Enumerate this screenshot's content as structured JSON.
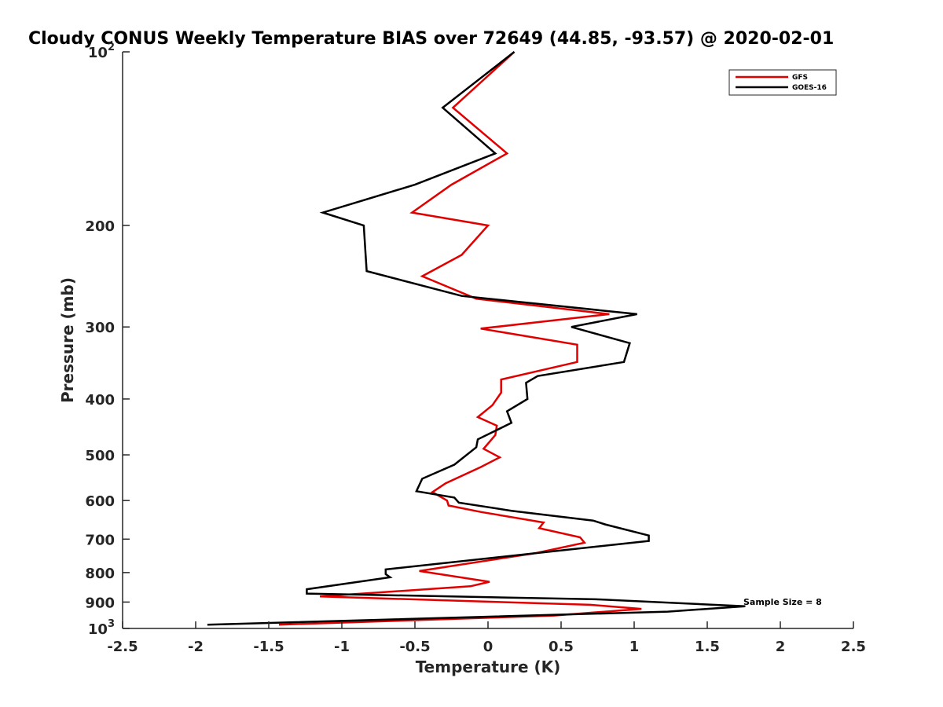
{
  "chart_data": {
    "type": "line",
    "title": "Cloudy CONUS Weekly Temperature BIAS over 72649 (44.85, -93.57) @ 2020-02-01",
    "xlabel": "Temperature (K)",
    "ylabel": "Pressure (mb)",
    "xlim": [
      -2.5,
      2.5
    ],
    "ylim": [
      1000,
      100
    ],
    "y_scale": "log",
    "y_reversed": true,
    "grid": false,
    "legend_position": "top-right",
    "x_ticks": [
      "-2.5",
      "-2",
      "-1.5",
      "-1",
      "-0.5",
      "0",
      "0.5",
      "1",
      "1.5",
      "2",
      "2.5"
    ],
    "x_tick_values": [
      -2.5,
      -2,
      -1.5,
      -1,
      -0.5,
      0,
      0.5,
      1,
      1.5,
      2,
      2.5
    ],
    "y_ticks": [
      {
        "value": 100,
        "base": "10",
        "exp": "2"
      },
      {
        "value": 200,
        "label": "200"
      },
      {
        "value": 300,
        "label": "300"
      },
      {
        "value": 400,
        "label": "400"
      },
      {
        "value": 500,
        "label": "500"
      },
      {
        "value": 600,
        "label": "600"
      },
      {
        "value": 700,
        "label": "700"
      },
      {
        "value": 800,
        "label": "800"
      },
      {
        "value": 900,
        "label": "900"
      },
      {
        "value": 1000,
        "base": "10",
        "exp": "3"
      }
    ],
    "annotation": "Sample Size = 8",
    "series": [
      {
        "name": "GFS",
        "color": "#e00000",
        "points": [
          [
            0.18,
            100
          ],
          [
            -0.24,
            125
          ],
          [
            0.13,
            150
          ],
          [
            -0.25,
            170
          ],
          [
            -0.52,
            190
          ],
          [
            0.0,
            200
          ],
          [
            -0.18,
            225
          ],
          [
            -0.45,
            245
          ],
          [
            -0.08,
            268
          ],
          [
            0.83,
            285
          ],
          [
            -0.05,
            302
          ],
          [
            0.61,
            322
          ],
          [
            0.61,
            345
          ],
          [
            0.09,
            370
          ],
          [
            0.09,
            390
          ],
          [
            0.03,
            410
          ],
          [
            -0.07,
            430
          ],
          [
            0.06,
            445
          ],
          [
            0.05,
            462
          ],
          [
            -0.03,
            488
          ],
          [
            0.08,
            505
          ],
          [
            -0.05,
            525
          ],
          [
            -0.29,
            560
          ],
          [
            -0.38,
            580
          ],
          [
            -0.28,
            600
          ],
          [
            -0.27,
            612
          ],
          [
            -0.05,
            628
          ],
          [
            0.38,
            655
          ],
          [
            0.35,
            670
          ],
          [
            0.63,
            695
          ],
          [
            0.66,
            710
          ],
          [
            0.33,
            740
          ],
          [
            -0.47,
            795
          ],
          [
            0.01,
            830
          ],
          [
            -0.12,
            845
          ],
          [
            -1.15,
            880
          ],
          [
            0.7,
            910
          ],
          [
            1.05,
            925
          ],
          [
            0.45,
            950
          ],
          [
            -1.43,
            985
          ]
        ]
      },
      {
        "name": "GOES-16",
        "color": "#000000",
        "points": [
          [
            0.18,
            100
          ],
          [
            -0.31,
            125
          ],
          [
            0.05,
            150
          ],
          [
            -0.5,
            170
          ],
          [
            -1.13,
            190
          ],
          [
            -0.85,
            200
          ],
          [
            -0.84,
            220
          ],
          [
            -0.83,
            240
          ],
          [
            -0.18,
            265
          ],
          [
            1.02,
            285
          ],
          [
            0.57,
            300
          ],
          [
            0.97,
            320
          ],
          [
            0.93,
            345
          ],
          [
            0.34,
            365
          ],
          [
            0.26,
            375
          ],
          [
            0.27,
            400
          ],
          [
            0.13,
            420
          ],
          [
            0.16,
            440
          ],
          [
            -0.07,
            470
          ],
          [
            -0.08,
            485
          ],
          [
            -0.23,
            520
          ],
          [
            -0.45,
            550
          ],
          [
            -0.49,
            578
          ],
          [
            -0.23,
            593
          ],
          [
            -0.2,
            605
          ],
          [
            0.16,
            625
          ],
          [
            0.72,
            650
          ],
          [
            0.8,
            660
          ],
          [
            1.1,
            690
          ],
          [
            1.1,
            705
          ],
          [
            -0.7,
            790
          ],
          [
            -0.7,
            805
          ],
          [
            -0.67,
            815
          ],
          [
            -1.24,
            855
          ],
          [
            -1.24,
            870
          ],
          [
            0.74,
            890
          ],
          [
            1.76,
            915
          ],
          [
            1.23,
            935
          ],
          [
            -1.92,
            985
          ]
        ]
      }
    ]
  }
}
